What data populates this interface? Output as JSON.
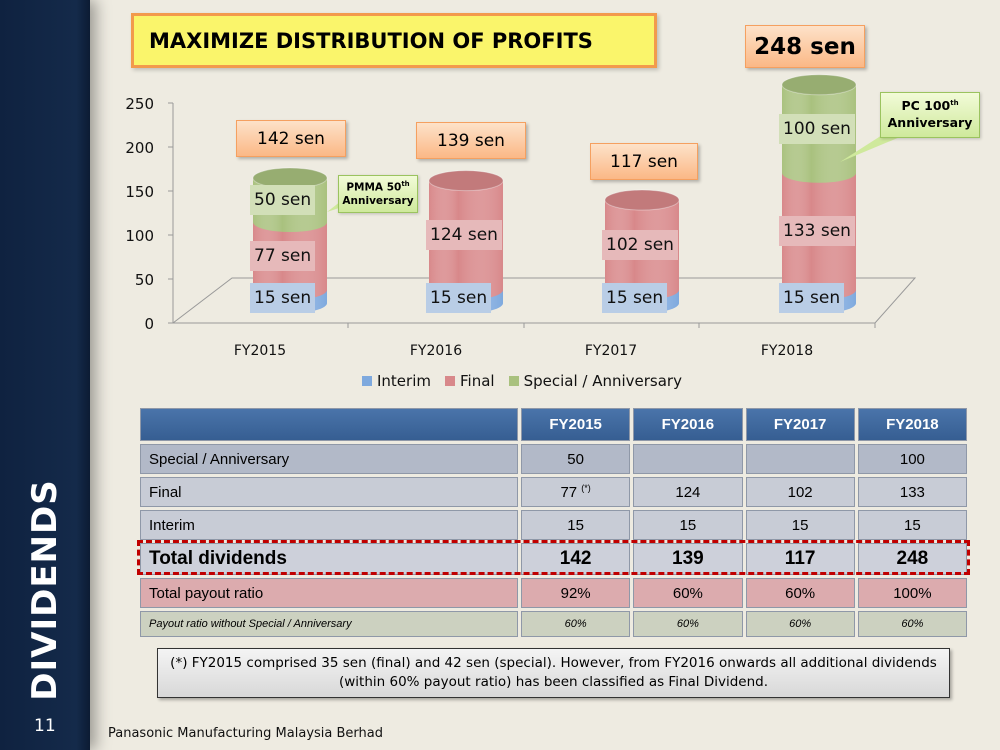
{
  "sidebar": {
    "title": "DIVIDENDS",
    "slide_number": "11"
  },
  "title": "MAXIMIZE DISTRIBUTION OF PROFITS",
  "chart_data": {
    "type": "bar",
    "stacked": true,
    "style": "3d-cylinder",
    "categories": [
      "FY2015",
      "FY2016",
      "FY2017",
      "FY2018"
    ],
    "unit": "sen",
    "series": [
      {
        "name": "Interim",
        "values": [
          15,
          15,
          15,
          15
        ],
        "color": "#7ea9de",
        "label_bg": "#b9cde6"
      },
      {
        "name": "Final",
        "values": [
          77,
          124,
          102,
          133
        ],
        "color": "#d8888a",
        "label_bg": "#e6b9ba"
      },
      {
        "name": "Special / Anniversary",
        "values": [
          50,
          0,
          0,
          100
        ],
        "color": "#a9c17e",
        "label_bg": "#d2dfb8"
      }
    ],
    "totals": [
      "142 sen",
      "139 sen",
      "117 sen",
      "248 sen"
    ],
    "ylim": [
      0,
      250
    ],
    "yticks": [
      "0",
      "50",
      "100",
      "150",
      "200",
      "250"
    ],
    "legend": "bottom",
    "annotations": [
      {
        "text": "PMMA 50",
        "sup": "th",
        "text2": "Anniversary",
        "category": "FY2015"
      },
      {
        "text": "PC 100",
        "sup": "th",
        "text2": "Anniversary",
        "category": "FY2018"
      }
    ]
  },
  "table": {
    "headers": [
      "",
      "FY2015",
      "FY2016",
      "FY2017",
      "FY2018"
    ],
    "rows": [
      {
        "label": "Special / Anniversary",
        "values": [
          "50",
          "",
          "",
          "100"
        ]
      },
      {
        "label": "Final",
        "values": [
          "77",
          "124",
          "102",
          "133"
        ],
        "note_mark": "(*)"
      },
      {
        "label": "Interim",
        "values": [
          "15",
          "15",
          "15",
          "15"
        ]
      },
      {
        "label": "Total dividends",
        "values": [
          "142",
          "139",
          "117",
          "248"
        ]
      },
      {
        "label": "Total payout ratio",
        "values": [
          "92%",
          "60%",
          "60%",
          "100%"
        ]
      },
      {
        "label": "Payout ratio without Special / Anniversary",
        "values": [
          "60%",
          "60%",
          "60%",
          "60%"
        ]
      }
    ]
  },
  "footnote": "(*) FY2015 comprised 35 sen (final) and 42 sen (special). However, from FY2016 onwards all additional dividends (within 60% payout ratio) has been classified as Final Dividend.",
  "footer": "Panasonic Manufacturing Malaysia Berhad"
}
